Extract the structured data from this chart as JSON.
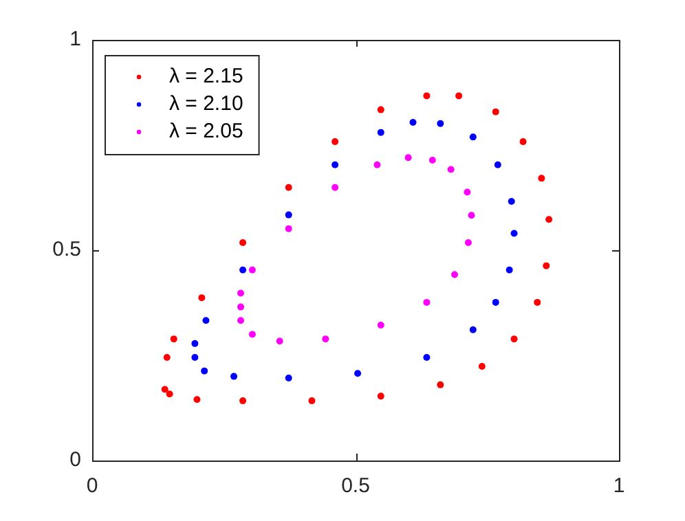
{
  "chart_data": {
    "type": "scatter",
    "xlim": [
      0,
      1
    ],
    "ylim": [
      0,
      1
    ],
    "xticks": [
      0,
      0.5,
      1
    ],
    "yticks": [
      0,
      0.5,
      1
    ],
    "grid": false,
    "legend": "top left",
    "marker": "circle",
    "series": [
      {
        "name": "λ = 2.15",
        "color": "#ff0000",
        "x": [
          0.138,
          0.142,
          0.155,
          0.208,
          0.286,
          0.373,
          0.461,
          0.548,
          0.635,
          0.696,
          0.766,
          0.818,
          0.853,
          0.867,
          0.862,
          0.845,
          0.801,
          0.74,
          0.661,
          0.548,
          0.417,
          0.286,
          0.199,
          0.147
        ],
        "values": [
          0.169,
          0.245,
          0.289,
          0.387,
          0.518,
          0.649,
          0.758,
          0.834,
          0.867,
          0.867,
          0.829,
          0.758,
          0.671,
          0.573,
          0.463,
          0.376,
          0.289,
          0.224,
          0.18,
          0.153,
          0.142,
          0.142,
          0.145,
          0.158
        ]
      },
      {
        "name": "λ = 2.10",
        "color": "#0000ff",
        "x": [
          0.195,
          0.195,
          0.216,
          0.286,
          0.373,
          0.461,
          0.548,
          0.609,
          0.661,
          0.723,
          0.77,
          0.796,
          0.801,
          0.792,
          0.766,
          0.723,
          0.635,
          0.504,
          0.373,
          0.269,
          0.213
        ],
        "values": [
          0.245,
          0.278,
          0.333,
          0.453,
          0.584,
          0.703,
          0.78,
          0.804,
          0.801,
          0.769,
          0.703,
          0.616,
          0.54,
          0.453,
          0.376,
          0.311,
          0.245,
          0.207,
          0.196,
          0.2,
          0.213
        ]
      },
      {
        "name": "λ = 2.05",
        "color": "#ff00ff",
        "x": [
          0.282,
          0.282,
          0.304,
          0.356,
          0.443,
          0.548,
          0.635,
          0.688,
          0.714,
          0.72,
          0.712,
          0.681,
          0.646,
          0.6,
          0.541,
          0.461,
          0.373,
          0.304,
          0.282
        ],
        "values": [
          0.365,
          0.333,
          0.3,
          0.284,
          0.289,
          0.322,
          0.376,
          0.442,
          0.518,
          0.583,
          0.638,
          0.692,
          0.714,
          0.72,
          0.703,
          0.649,
          0.551,
          0.453,
          0.398
        ]
      }
    ]
  }
}
